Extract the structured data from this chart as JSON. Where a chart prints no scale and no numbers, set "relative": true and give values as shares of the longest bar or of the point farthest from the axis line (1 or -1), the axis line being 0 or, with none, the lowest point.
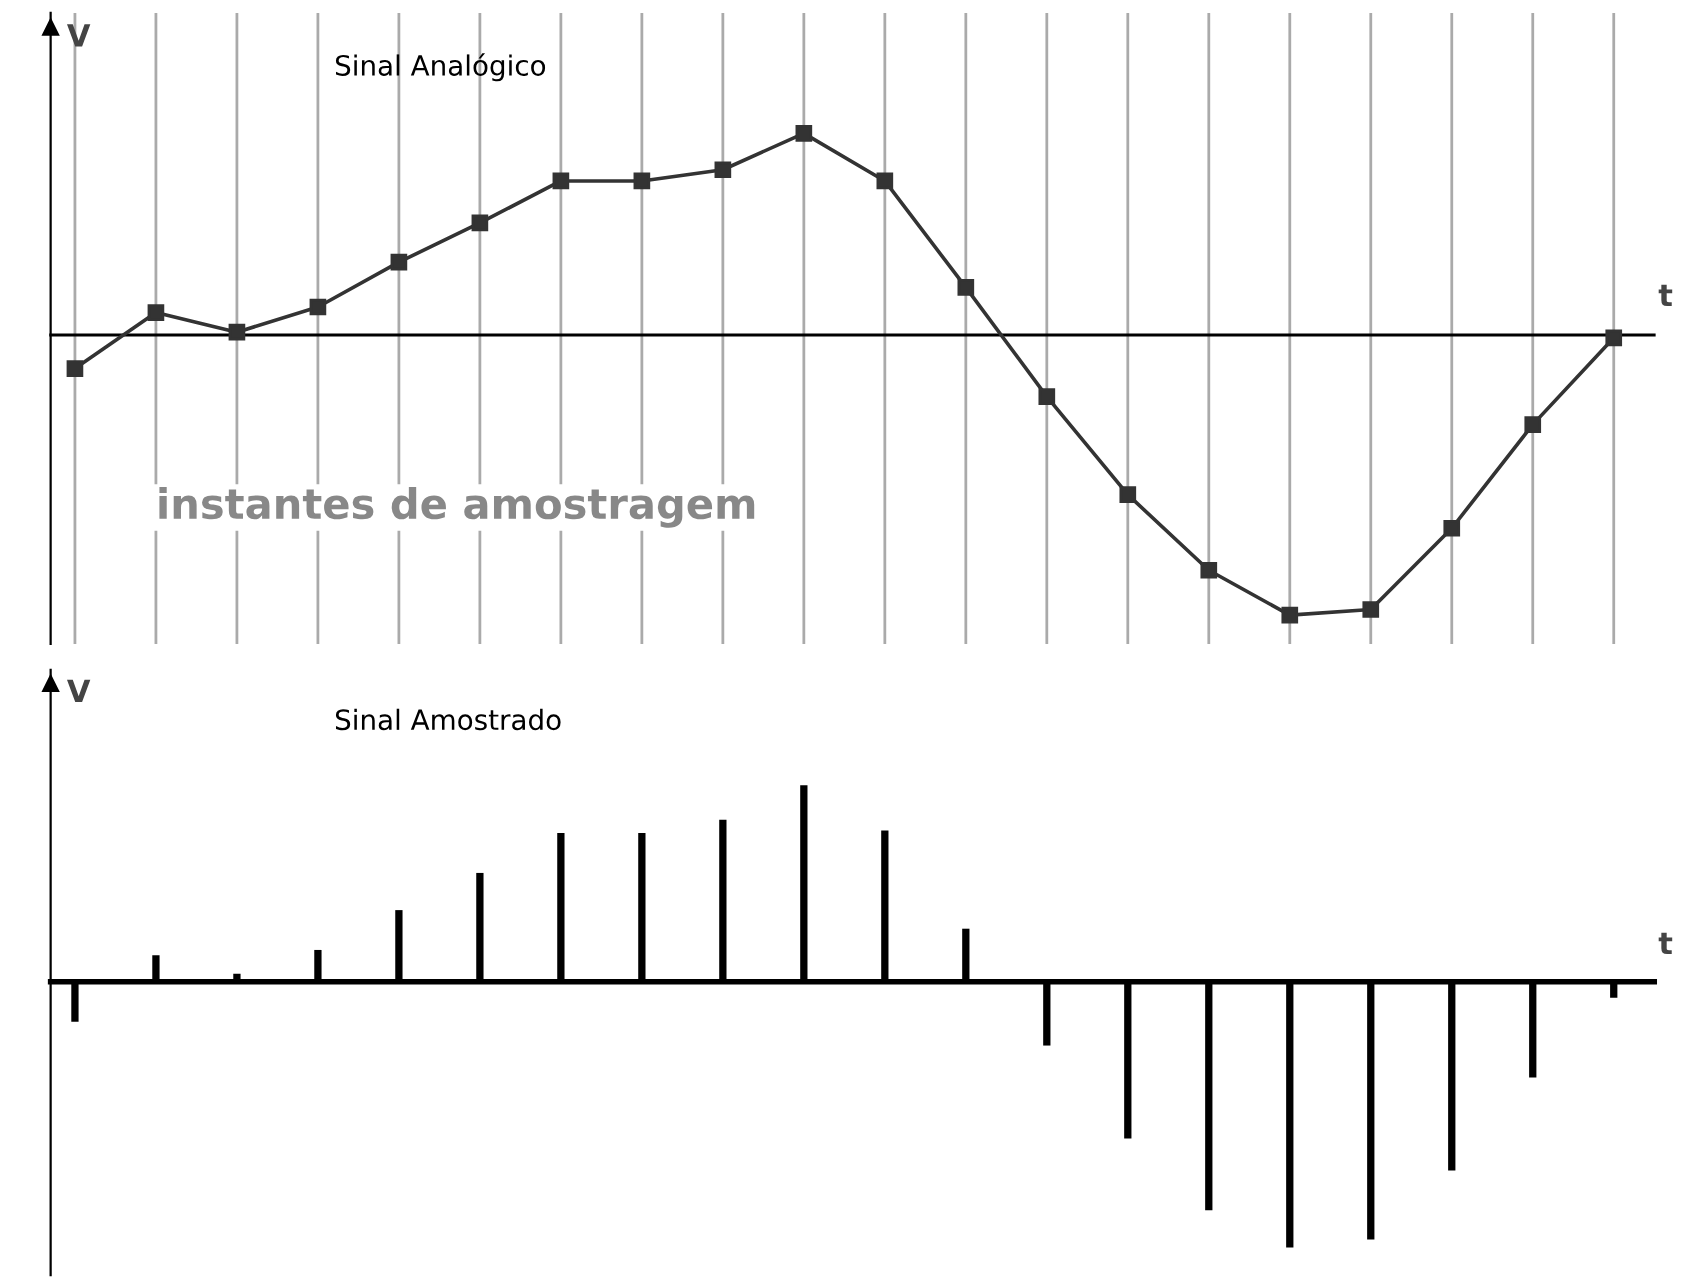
{
  "chart_data": [
    {
      "type": "line",
      "title": "Sinal Analógico",
      "ylabel": "V",
      "xlabel": "t",
      "relative": true,
      "grid": "x",
      "marker": "square",
      "categories": [
        null,
        null,
        null,
        null,
        null,
        null,
        null,
        null,
        null,
        null,
        null,
        null,
        null,
        null,
        null,
        null,
        null,
        null,
        null,
        null
      ],
      "series": [
        {
          "color": "#333333",
          "values": [
            -0.12,
            0.08,
            0.01,
            0.1,
            0.26,
            0.4,
            0.55,
            0.55,
            0.59,
            0.72,
            0.55,
            0.17,
            -0.22,
            -0.57,
            -0.84,
            -1,
            -0.98,
            -0.69,
            -0.32,
            -0.01
          ]
        }
      ],
      "annotations": [
        "instantes de amostragem"
      ]
    },
    {
      "type": "bar",
      "title": "Sinal Amostrado",
      "ylabel": "V",
      "xlabel": "t",
      "relative": true,
      "categories": [
        null,
        null,
        null,
        null,
        null,
        null,
        null,
        null,
        null,
        null,
        null,
        null,
        null,
        null,
        null,
        null,
        null,
        null,
        null,
        null
      ],
      "series": [
        {
          "color": "#000000",
          "values": [
            -0.15,
            0.1,
            0.03,
            0.12,
            0.27,
            0.41,
            0.56,
            0.56,
            0.61,
            0.74,
            0.57,
            0.2,
            -0.24,
            -0.59,
            -0.86,
            -1,
            -0.97,
            -0.71,
            -0.36,
            -0.06
          ]
        }
      ]
    }
  ]
}
